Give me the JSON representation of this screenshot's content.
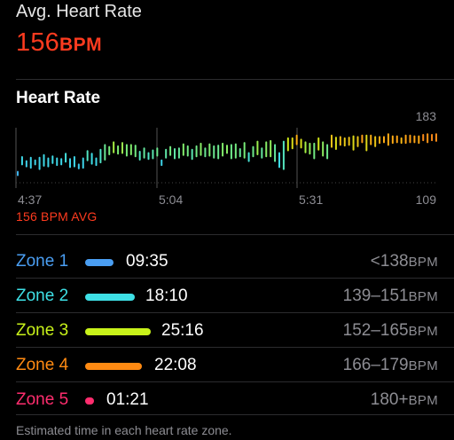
{
  "header": {
    "label": "Avg. Heart Rate",
    "value": "156",
    "unit": "BPM"
  },
  "section": {
    "title": "Heart Rate"
  },
  "chart_data": {
    "type": "bar",
    "title": "Heart Rate",
    "x_ticks": [
      "4:37",
      "5:04",
      "5:31"
    ],
    "y_max_label": "183",
    "y_min_label": "109",
    "ylim": [
      109,
      183
    ],
    "avg_label": "156 BPM AVG",
    "grid": true,
    "series": [
      {
        "values": [
          [
            115,
            120
          ],
          [
            131,
            142
          ],
          [
            128,
            136
          ],
          [
            126,
            141
          ],
          [
            131,
            137
          ],
          [
            124,
            141
          ],
          [
            129,
            145
          ],
          [
            128,
            140
          ],
          [
            133,
            143
          ],
          [
            130,
            140
          ],
          [
            131,
            139
          ],
          [
            135,
            147
          ],
          [
            127,
            139
          ],
          [
            128,
            142
          ],
          [
            125,
            131
          ],
          [
            126,
            140
          ],
          [
            137,
            151
          ],
          [
            132,
            147
          ],
          [
            130,
            140
          ],
          [
            134,
            153
          ],
          [
            138,
            160
          ],
          [
            146,
            157
          ],
          [
            149,
            164
          ],
          [
            147,
            158
          ],
          [
            148,
            163
          ],
          [
            144,
            160
          ],
          [
            146,
            160
          ],
          [
            143,
            159
          ],
          [
            138,
            150
          ],
          [
            141,
            155
          ],
          [
            139,
            148
          ],
          [
            140,
            152
          ],
          [
            144,
            155
          ],
          [
            130,
            137
          ],
          [
            141,
            153
          ],
          [
            145,
            157
          ],
          [
            140,
            154
          ],
          [
            141,
            155
          ],
          [
            145,
            161
          ],
          [
            144,
            158
          ],
          [
            139,
            153
          ],
          [
            143,
            158
          ],
          [
            145,
            162
          ],
          [
            143,
            155
          ],
          [
            144,
            161
          ],
          [
            141,
            158
          ],
          [
            140,
            159
          ],
          [
            144,
            162
          ],
          [
            148,
            159
          ],
          [
            140,
            160
          ],
          [
            141,
            161
          ],
          [
            143,
            154
          ],
          [
            141,
            163
          ],
          [
            136,
            148
          ],
          [
            143,
            157
          ],
          [
            146,
            165
          ],
          [
            141,
            155
          ],
          [
            143,
            164
          ],
          [
            143,
            166
          ],
          [
            136,
            160
          ],
          [
            127,
            148
          ],
          [
            124,
            165
          ],
          [
            152,
            170
          ],
          [
            155,
            170
          ],
          [
            161,
            174
          ],
          [
            156,
            168
          ],
          [
            149,
            164
          ],
          [
            147,
            162
          ],
          [
            140,
            162
          ],
          [
            153,
            170
          ],
          [
            144,
            164
          ],
          [
            140,
            160
          ],
          [
            157,
            174
          ],
          [
            154,
            171
          ],
          [
            160,
            172
          ],
          [
            159,
            170
          ],
          [
            160,
            171
          ],
          [
            153,
            173
          ],
          [
            158,
            172
          ],
          [
            164,
            174
          ],
          [
            152,
            174
          ],
          [
            161,
            174
          ],
          [
            158,
            172
          ],
          [
            163,
            172
          ],
          [
            164,
            172
          ],
          [
            160,
            176
          ],
          [
            163,
            173
          ],
          [
            164,
            173
          ],
          [
            163,
            170
          ],
          [
            163,
            174
          ],
          [
            164,
            174
          ],
          [
            164,
            173
          ],
          [
            163,
            173
          ],
          [
            167,
            175
          ],
          [
            164,
            176
          ],
          [
            167,
            175
          ],
          [
            166,
            176
          ]
        ]
      }
    ]
  },
  "zones": [
    {
      "name": "Zone 1",
      "time": "09:35",
      "range": "<138",
      "unit": "BPM",
      "color": "#4a9ef2"
    },
    {
      "name": "Zone 2",
      "time": "18:10",
      "range": "139–151",
      "unit": "BPM",
      "color": "#3ee0e6"
    },
    {
      "name": "Zone 3",
      "time": "25:16",
      "range": "152–165",
      "unit": "BPM",
      "color": "#c8f21a"
    },
    {
      "name": "Zone 4",
      "time": "22:08",
      "range": "166–179",
      "unit": "BPM",
      "color": "#ff8a12"
    },
    {
      "name": "Zone 5",
      "time": "01:21",
      "range": "180+",
      "unit": "BPM",
      "color": "#ff2d6e"
    }
  ],
  "footer": {
    "text": "Estimated time in each heart rate zone."
  }
}
